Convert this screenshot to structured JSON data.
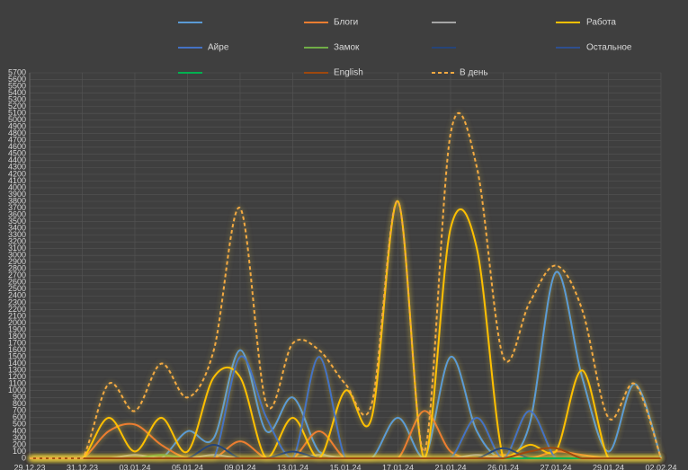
{
  "chart_data": {
    "type": "line",
    "categories": [
      "29.12.23",
      null,
      "31.12.23",
      null,
      "03.01.24",
      null,
      "05.01.24",
      null,
      "09.01.24",
      null,
      "13.01.24",
      null,
      "15.01.24",
      null,
      "17.01.24",
      null,
      "21.01.24",
      null,
      "26.01.24",
      null,
      "27.01.24",
      null,
      "29.01.24",
      null,
      "02.02.24"
    ],
    "ylim": [
      0,
      5700
    ],
    "yticks": [
      0,
      100,
      200,
      300,
      400,
      500,
      600,
      700,
      800,
      900,
      1000,
      1100,
      1200,
      1300,
      1400,
      1500,
      1600,
      1700,
      1800,
      1900,
      2000,
      2100,
      2200,
      2300,
      2400,
      2500,
      2600,
      2700,
      2800,
      2900,
      3000,
      3100,
      3200,
      3300,
      3400,
      3500,
      3600,
      3700,
      3800,
      3900,
      4000,
      4100,
      4200,
      4300,
      4400,
      4500,
      4600,
      4700,
      4800,
      4900,
      5000,
      5100,
      5200,
      5300,
      5400,
      5500,
      5600,
      5700
    ],
    "grid": true,
    "series": [
      {
        "name": null,
        "color": "#5b9bd5",
        "values": [
          0,
          0,
          0,
          0,
          0,
          0,
          400,
          300,
          1600,
          400,
          900,
          100,
          0,
          0,
          600,
          0,
          1500,
          400,
          0,
          500,
          2750,
          1200,
          100,
          1100,
          0
        ]
      },
      {
        "name": "Блоги",
        "color": "#ed7d31",
        "values": [
          0,
          0,
          0,
          400,
          500,
          200,
          0,
          0,
          250,
          0,
          0,
          400,
          0,
          0,
          0,
          700,
          100,
          0,
          50,
          0,
          100,
          50,
          0,
          0,
          0
        ]
      },
      {
        "name": null,
        "color": "#a5a5a5",
        "values": [
          0,
          0,
          0,
          0,
          50,
          0,
          0,
          50,
          0,
          0,
          0,
          50,
          0,
          0,
          0,
          0,
          0,
          50,
          0,
          0,
          0,
          0,
          0,
          0,
          0
        ]
      },
      {
        "name": "Работа",
        "color": "#ffc000",
        "values": [
          0,
          0,
          0,
          600,
          100,
          600,
          100,
          1200,
          1200,
          0,
          600,
          0,
          1000,
          600,
          3800,
          0,
          3400,
          3100,
          0,
          200,
          100,
          1300,
          0,
          0,
          0
        ]
      },
      {
        "name": "Айре",
        "color": "#4472c4",
        "values": [
          0,
          0,
          0,
          0,
          0,
          0,
          0,
          0,
          1500,
          600,
          0,
          1500,
          0,
          0,
          0,
          0,
          0,
          600,
          0,
          700,
          0,
          0,
          0,
          0,
          0
        ]
      },
      {
        "name": "Замок",
        "color": "#70ad47",
        "values": [
          0,
          0,
          0,
          0,
          0,
          50,
          0,
          0,
          0,
          0,
          0,
          0,
          0,
          0,
          0,
          0,
          0,
          0,
          0,
          0,
          0,
          0,
          0,
          0,
          0
        ]
      },
      {
        "name": null,
        "color": "#264478",
        "values": [
          0,
          0,
          0,
          0,
          0,
          0,
          0,
          200,
          0,
          0,
          100,
          0,
          0,
          0,
          0,
          0,
          0,
          0,
          150,
          0,
          0,
          0,
          0,
          0,
          0
        ]
      },
      {
        "name": "Остальное",
        "color": "#2f4f8f",
        "values": [
          0,
          0,
          0,
          0,
          0,
          0,
          0,
          0,
          0,
          0,
          0,
          0,
          0,
          0,
          0,
          0,
          0,
          0,
          0,
          0,
          0,
          0,
          0,
          0,
          0
        ]
      },
      {
        "name": null,
        "color": "#00b050",
        "values": [
          0,
          0,
          0,
          0,
          0,
          0,
          0,
          0,
          0,
          0,
          0,
          0,
          0,
          0,
          0,
          0,
          0,
          0,
          0,
          0,
          0,
          0,
          0,
          0,
          0
        ]
      },
      {
        "name": "English",
        "color": "#9e480e",
        "values": [
          0,
          0,
          0,
          0,
          0,
          0,
          0,
          0,
          0,
          0,
          0,
          0,
          0,
          0,
          0,
          0,
          0,
          0,
          0,
          100,
          150,
          0,
          0,
          0,
          0
        ]
      },
      {
        "name": "В день",
        "color": "#f4a942",
        "dashed": true,
        "values": [
          0,
          0,
          0,
          1100,
          700,
          1400,
          900,
          1600,
          3700,
          800,
          1700,
          1600,
          1100,
          800,
          3800,
          100,
          4800,
          4300,
          1500,
          2300,
          2850,
          2200,
          600,
          1100,
          0
        ]
      }
    ]
  }
}
